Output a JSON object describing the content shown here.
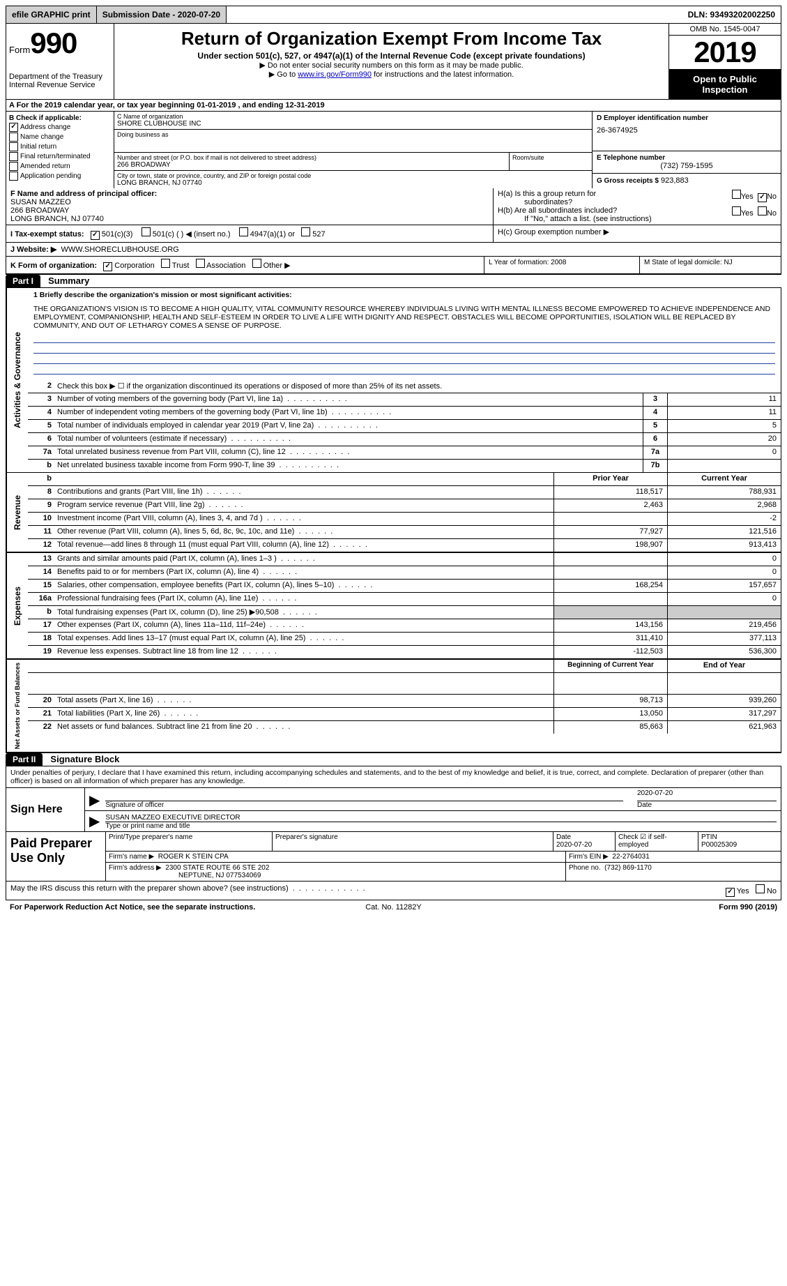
{
  "top": {
    "efile": "efile GRAPHIC print",
    "submission": "Submission Date - 2020-07-20",
    "dln": "DLN: 93493202002250"
  },
  "header": {
    "form_small": "Form",
    "form_big": "990",
    "dept1": "Department of the Treasury",
    "dept2": "Internal Revenue Service",
    "title": "Return of Organization Exempt From Income Tax",
    "sub": "Under section 501(c), 527, or 4947(a)(1) of the Internal Revenue Code (except private foundations)",
    "note1": "▶ Do not enter social security numbers on this form as it may be made public.",
    "note2_pre": "▶ Go to ",
    "note2_link": "www.irs.gov/Form990",
    "note2_post": " for instructions and the latest information.",
    "omb": "OMB No. 1545-0047",
    "year": "2019",
    "open1": "Open to Public",
    "open2": "Inspection"
  },
  "A": "A For the 2019 calendar year, or tax year beginning 01-01-2019    , and ending 12-31-2019",
  "B": {
    "title": "B Check if applicable:",
    "items": [
      "Address change",
      "Name change",
      "Initial return",
      "Final return/terminated",
      "Amended return",
      "Application pending"
    ]
  },
  "C": {
    "name_lbl": "C Name of organization",
    "name": "SHORE CLUBHOUSE INC",
    "dba_lbl": "Doing business as",
    "addr_lbl": "Number and street (or P.O. box if mail is not delivered to street address)",
    "room_lbl": "Room/suite",
    "addr": "266 BROADWAY",
    "city_lbl": "City or town, state or province, country, and ZIP or foreign postal code",
    "city": "LONG BRANCH, NJ  07740"
  },
  "D": {
    "ein_lbl": "D Employer identification number",
    "ein": "26-3674925",
    "tel_lbl": "E Telephone number",
    "tel": "(732) 759-1595",
    "gross_lbl": "G Gross receipts $",
    "gross": "923,883"
  },
  "F": {
    "lbl": "F Name and address of principal officer:",
    "name": "SUSAN MAZZEO",
    "addr1": "266 BROADWAY",
    "addr2": "LONG BRANCH, NJ  07740"
  },
  "H": {
    "a": "H(a)  Is this a group return for",
    "a2": "subordinates?",
    "b": "H(b)  Are all subordinates included?",
    "b2": "If \"No,\" attach a list. (see instructions)",
    "c": "H(c)  Group exemption number ▶",
    "yes": "Yes",
    "no": "No"
  },
  "I": "I   Tax-exempt status:",
  "I_opts": [
    "501(c)(3)",
    "501(c) (   ) ◀ (insert no.)",
    "4947(a)(1) or",
    "527"
  ],
  "J": "J   Website: ▶",
  "J_val": "WWW.SHORECLUBHOUSE.ORG",
  "K": "K Form of organization:",
  "K_opts": [
    "Corporation",
    "Trust",
    "Association",
    "Other ▶"
  ],
  "L": "L Year of formation: 2008",
  "M": "M State of legal domicile: NJ",
  "part1": {
    "label": "Part I",
    "title": "Summary"
  },
  "mission_lbl": "1  Briefly describe the organization's mission or most significant activities:",
  "mission": "THE ORGANIZATION'S VISION IS TO BECOME A HIGH QUALITY, VITAL COMMUNITY RESOURCE WHEREBY INDIVIDUALS LIVING WITH MENTAL ILLNESS BECOME EMPOWERED TO ACHIEVE INDEPENDENCE AND EMPLOYMENT, COMPANIONSHIP, HEALTH AND SELF-ESTEEM IN ORDER TO LIVE A LIFE WITH DIGNITY AND RESPECT. OBSTACLES WILL BECOME OPPORTUNITIES, ISOLATION WILL BE REPLACED BY COMMUNITY, AND OUT OF LETHARGY COMES A SENSE OF PURPOSE.",
  "lines_gov": [
    {
      "n": "2",
      "t": "Check this box ▶ ☐  if the organization discontinued its operations or disposed of more than 25% of its net assets.",
      "box": "",
      "v": ""
    },
    {
      "n": "3",
      "t": "Number of voting members of the governing body (Part VI, line 1a)",
      "box": "3",
      "v": "11"
    },
    {
      "n": "4",
      "t": "Number of independent voting members of the governing body (Part VI, line 1b)",
      "box": "4",
      "v": "11"
    },
    {
      "n": "5",
      "t": "Total number of individuals employed in calendar year 2019 (Part V, line 2a)",
      "box": "5",
      "v": "5"
    },
    {
      "n": "6",
      "t": "Total number of volunteers (estimate if necessary)",
      "box": "6",
      "v": "20"
    },
    {
      "n": "7a",
      "t": "Total unrelated business revenue from Part VIII, column (C), line 12",
      "box": "7a",
      "v": "0"
    },
    {
      "n": "b",
      "t": "Net unrelated business taxable income from Form 990-T, line 39",
      "box": "7b",
      "v": ""
    }
  ],
  "col_headers": {
    "prior": "Prior Year",
    "current": "Current Year"
  },
  "lines_rev": [
    {
      "n": "8",
      "t": "Contributions and grants (Part VIII, line 1h)",
      "p": "118,517",
      "c": "788,931"
    },
    {
      "n": "9",
      "t": "Program service revenue (Part VIII, line 2g)",
      "p": "2,463",
      "c": "2,968"
    },
    {
      "n": "10",
      "t": "Investment income (Part VIII, column (A), lines 3, 4, and 7d )",
      "p": "",
      "c": "-2"
    },
    {
      "n": "11",
      "t": "Other revenue (Part VIII, column (A), lines 5, 6d, 8c, 9c, 10c, and 11e)",
      "p": "77,927",
      "c": "121,516"
    },
    {
      "n": "12",
      "t": "Total revenue—add lines 8 through 11 (must equal Part VIII, column (A), line 12)",
      "p": "198,907",
      "c": "913,413"
    }
  ],
  "lines_exp": [
    {
      "n": "13",
      "t": "Grants and similar amounts paid (Part IX, column (A), lines 1–3 )",
      "p": "",
      "c": "0"
    },
    {
      "n": "14",
      "t": "Benefits paid to or for members (Part IX, column (A), line 4)",
      "p": "",
      "c": "0"
    },
    {
      "n": "15",
      "t": "Salaries, other compensation, employee benefits (Part IX, column (A), lines 5–10)",
      "p": "168,254",
      "c": "157,657"
    },
    {
      "n": "16a",
      "t": "Professional fundraising fees (Part IX, column (A), line 11e)",
      "p": "",
      "c": "0"
    },
    {
      "n": "b",
      "t": "Total fundraising expenses (Part IX, column (D), line 25) ▶90,508",
      "p": "—",
      "c": "—"
    },
    {
      "n": "17",
      "t": "Other expenses (Part IX, column (A), lines 11a–11d, 11f–24e)",
      "p": "143,156",
      "c": "219,456"
    },
    {
      "n": "18",
      "t": "Total expenses. Add lines 13–17 (must equal Part IX, column (A), line 25)",
      "p": "311,410",
      "c": "377,113"
    },
    {
      "n": "19",
      "t": "Revenue less expenses. Subtract line 18 from line 12",
      "p": "-112,503",
      "c": "536,300"
    }
  ],
  "col_headers2": {
    "prior": "Beginning of Current Year",
    "current": "End of Year"
  },
  "lines_net": [
    {
      "n": "20",
      "t": "Total assets (Part X, line 16)",
      "p": "98,713",
      "c": "939,260"
    },
    {
      "n": "21",
      "t": "Total liabilities (Part X, line 26)",
      "p": "13,050",
      "c": "317,297"
    },
    {
      "n": "22",
      "t": "Net assets or fund balances. Subtract line 21 from line 20",
      "p": "85,663",
      "c": "621,963"
    }
  ],
  "part2": {
    "label": "Part II",
    "title": "Signature Block"
  },
  "sig_decl": "Under penalties of perjury, I declare that I have examined this return, including accompanying schedules and statements, and to the best of my knowledge and belief, it is true, correct, and complete. Declaration of preparer (other than officer) is based on all information of which preparer has any knowledge.",
  "sign": {
    "here": "Sign Here",
    "sig_lbl": "Signature of officer",
    "date": "2020-07-20",
    "date_lbl": "Date",
    "name": "SUSAN MAZZEO  EXECUTIVE DIRECTOR",
    "name_lbl": "Type or print name and title"
  },
  "prep": {
    "title": "Paid Preparer Use Only",
    "h1": "Print/Type preparer's name",
    "h2": "Preparer's signature",
    "h3": "Date",
    "h3v": "2020-07-20",
    "h4": "Check ☑ if self-employed",
    "h5": "PTIN",
    "h5v": "P00025309",
    "firm_lbl": "Firm's name     ▶",
    "firm": "ROGER K STEIN CPA",
    "ein_lbl": "Firm's EIN ▶",
    "ein": "22-2764031",
    "addr_lbl": "Firm's address ▶",
    "addr1": "2300 STATE ROUTE 66 STE 202",
    "addr2": "NEPTUNE, NJ  077534069",
    "phone_lbl": "Phone no.",
    "phone": "(732) 869-1170"
  },
  "discuss": "May the IRS discuss this return with the preparer shown above? (see instructions)",
  "footer": {
    "l": "For Paperwork Reduction Act Notice, see the separate instructions.",
    "c": "Cat. No. 11282Y",
    "r": "Form 990 (2019)"
  },
  "sides": {
    "gov": "Activities & Governance",
    "rev": "Revenue",
    "exp": "Expenses",
    "net": "Net Assets or Fund Balances"
  }
}
